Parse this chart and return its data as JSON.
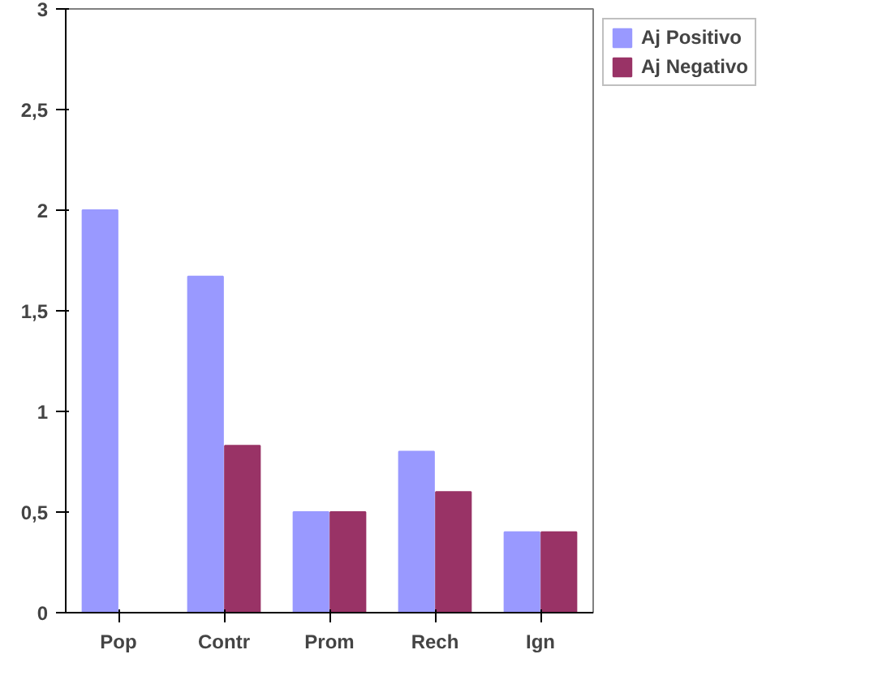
{
  "chart_data": {
    "type": "bar",
    "categories": [
      "Pop",
      "Contr",
      "Prom",
      "Rech",
      "Ign"
    ],
    "series": [
      {
        "name": "Aj Positivo",
        "color": "#9999ff",
        "values": [
          2,
          1.67,
          0.5,
          0.8,
          0.4
        ]
      },
      {
        "name": "Aj Negativo",
        "color": "#993366",
        "values": [
          0,
          0.83,
          0.5,
          0.6,
          0.4
        ]
      }
    ],
    "ylim": [
      0,
      3
    ],
    "yticks": [
      0,
      {
        "value": 0.5,
        "label": "0,5"
      },
      1,
      {
        "value": 1.5,
        "label": "1,5"
      },
      2,
      {
        "value": 2.5,
        "label": "2,5"
      },
      3
    ],
    "grid": false,
    "legend": "top right"
  }
}
